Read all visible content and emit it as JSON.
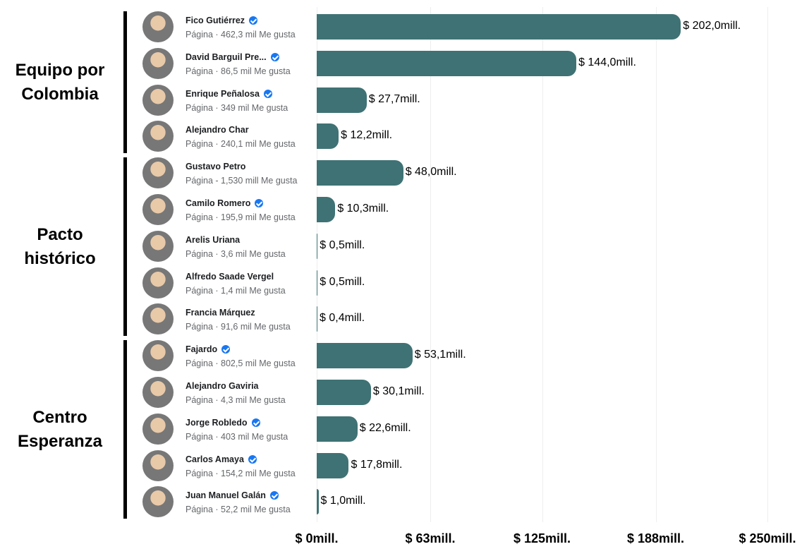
{
  "chart_data": {
    "type": "bar",
    "orientation": "horizontal",
    "color": "#3f7274",
    "xlim": [
      0,
      250
    ],
    "xticks": [
      {
        "value": 0,
        "label": "$ 0mill."
      },
      {
        "value": 63,
        "label": "$ 63mill."
      },
      {
        "value": 125,
        "label": "$ 125mill."
      },
      {
        "value": 188,
        "label": "$ 188mill."
      },
      {
        "value": 250,
        "label": "$ 250mill."
      }
    ],
    "grid": true,
    "groups": [
      {
        "name": "Equipo por Colombia",
        "items": [
          {
            "name": "Fico Gutiérrez",
            "subtitle": "Página · 462,3 mil Me gusta",
            "verified": true,
            "value": 202.0,
            "value_label": "$ 202,0mill."
          },
          {
            "name": "David Barguil Pre...",
            "subtitle": "Página · 86,5 mil Me gusta",
            "verified": true,
            "value": 144.0,
            "value_label": "$ 144,0mill."
          },
          {
            "name": "Enrique Peñalosa",
            "subtitle": "Página · 349 mil Me gusta",
            "verified": true,
            "value": 27.7,
            "value_label": "$ 27,7mill."
          },
          {
            "name": "Alejandro Char",
            "subtitle": "Página · 240,1 mil Me gusta",
            "verified": false,
            "value": 12.2,
            "value_label": "$ 12,2mill."
          }
        ]
      },
      {
        "name": "Pacto histórico",
        "items": [
          {
            "name": "Gustavo Petro",
            "subtitle": "Página - 1,530 mill Me gusta",
            "verified": false,
            "value": 48.0,
            "value_label": "$ 48,0mill."
          },
          {
            "name": "Camilo Romero",
            "subtitle": "Página · 195,9 mil Me gusta",
            "verified": true,
            "value": 10.3,
            "value_label": "$ 10,3mill."
          },
          {
            "name": "Arelis Uriana",
            "subtitle": "Página · 3,6 mil Me gusta",
            "verified": false,
            "value": 0.5,
            "value_label": "$ 0,5mill."
          },
          {
            "name": "Alfredo Saade Vergel",
            "subtitle": "Página · 1,4 mil Me gusta",
            "verified": false,
            "value": 0.5,
            "value_label": "$ 0,5mill."
          },
          {
            "name": "Francia Márquez",
            "subtitle": "Página · 91,6 mil Me gusta",
            "verified": false,
            "value": 0.4,
            "value_label": "$ 0,4mill."
          }
        ]
      },
      {
        "name": "Centro Esperanza",
        "items": [
          {
            "name": "Fajardo",
            "subtitle": "Página · 802,5 mil Me gusta",
            "verified": true,
            "value": 53.1,
            "value_label": "$ 53,1mill."
          },
          {
            "name": "Alejandro Gaviria",
            "subtitle": "Página · 4,3 mil Me gusta",
            "verified": false,
            "value": 30.1,
            "value_label": "$ 30,1mill."
          },
          {
            "name": "Jorge Robledo",
            "subtitle": "Página · 403 mil Me gusta",
            "verified": true,
            "value": 22.6,
            "value_label": "$ 22,6mill."
          },
          {
            "name": "Carlos Amaya",
            "subtitle": "Página · 154,2 mil Me gusta",
            "verified": true,
            "value": 17.8,
            "value_label": "$ 17,8mill."
          },
          {
            "name": "Juan Manuel Galán",
            "subtitle": "Página · 52,2 mil Me gusta",
            "verified": true,
            "value": 1.0,
            "value_label": "$ 1,0mill."
          }
        ]
      }
    ]
  }
}
